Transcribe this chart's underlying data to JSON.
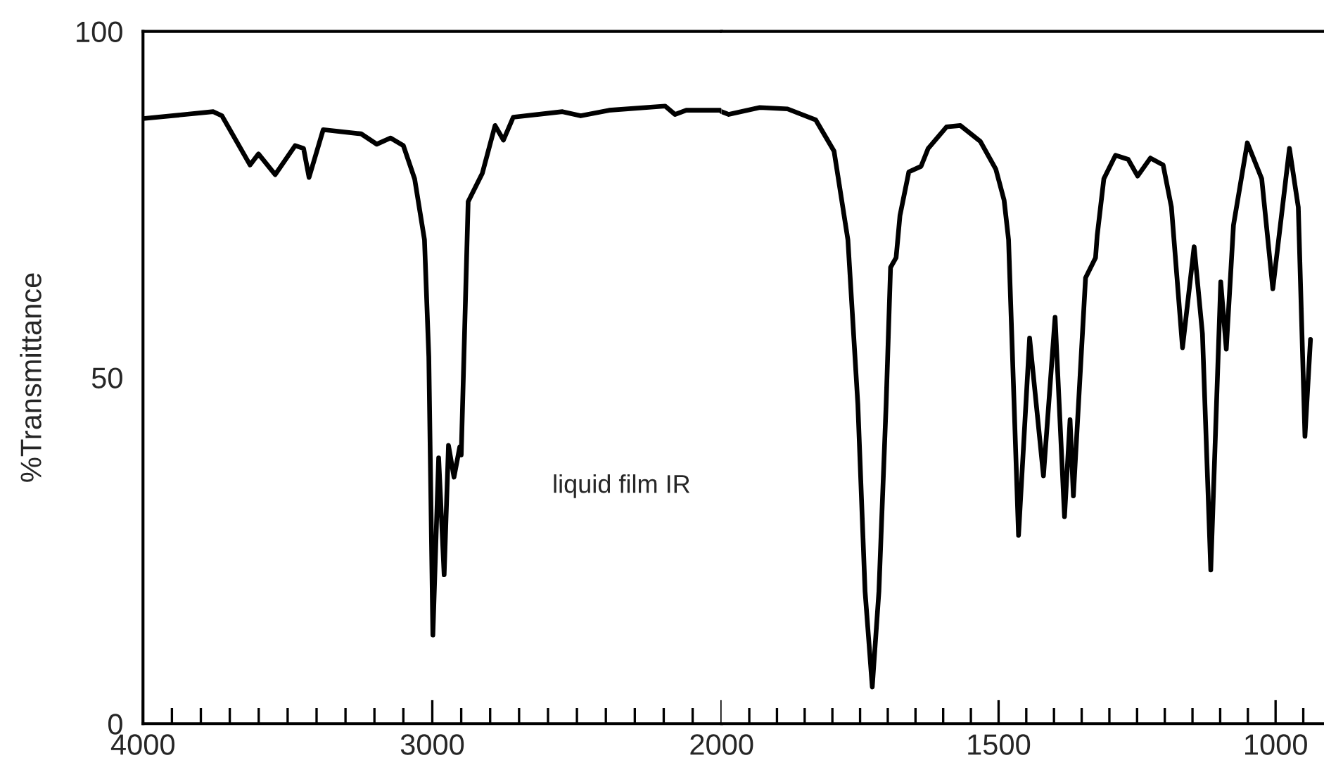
{
  "chart_data": [
    {
      "type": "line",
      "ylabel": "%Transmittance",
      "annotations": [
        "liquid film IR"
      ],
      "xlim": [
        4000,
        2000
      ],
      "ylim": [
        0,
        100
      ],
      "yticks": [
        0,
        50,
        100
      ],
      "xticks": [
        4000,
        {
          "value": 3900,
          "label": null
        },
        {
          "value": 3800,
          "label": null
        },
        {
          "value": 3700,
          "label": null
        },
        {
          "value": 3600,
          "label": null
        },
        {
          "value": 3500,
          "label": null
        },
        {
          "value": 3400,
          "label": null
        },
        {
          "value": 3300,
          "label": null
        },
        {
          "value": 3200,
          "label": null
        },
        {
          "value": 3100,
          "label": null
        },
        3000,
        {
          "value": 2900,
          "label": null
        },
        {
          "value": 2800,
          "label": null
        },
        {
          "value": 2700,
          "label": null
        },
        {
          "value": 2600,
          "label": null
        },
        {
          "value": 2500,
          "label": null
        },
        {
          "value": 2400,
          "label": null
        },
        {
          "value": 2300,
          "label": null
        },
        {
          "value": 2200,
          "label": null
        },
        {
          "value": 2100,
          "label": null
        },
        2000
      ],
      "series": [
        {
          "color": "#000000",
          "x": [
            4000,
            3757,
            3727,
            3630,
            3601,
            3543,
            3474,
            3445,
            3426,
            3377,
            3246,
            3192,
            3144,
            3100,
            3061,
            3027,
            3012,
            2998,
            2978,
            2959,
            2944,
            2925,
            2905,
            2900,
            2876,
            2827,
            2783,
            2754,
            2720,
            2550,
            2487,
            2389,
            2195,
            2161,
            2122,
            2005,
            2000
          ],
          "values": [
            87.4,
            88.4,
            87.8,
            80.7,
            82.3,
            79.3,
            83.5,
            83.1,
            78.9,
            85.8,
            85.2,
            83.7,
            84.6,
            83.5,
            78.7,
            69.9,
            53.0,
            12.8,
            38.4,
            21.5,
            40.2,
            35.6,
            40.0,
            38.8,
            75.4,
            79.5,
            86.4,
            84.3,
            87.6,
            88.4,
            87.8,
            88.6,
            89.2,
            88.0,
            88.6,
            88.6,
            88.4
          ]
        }
      ]
    },
    {
      "type": "line",
      "tick_labels": "x",
      "xlim": [
        2000,
        915
      ],
      "ylim": [
        0,
        100
      ],
      "xticks": [
        {
          "value": 1950,
          "label": null
        },
        {
          "value": 1900,
          "label": null
        },
        {
          "value": 1850,
          "label": null
        },
        {
          "value": 1800,
          "label": null
        },
        {
          "value": 1750,
          "label": null
        },
        {
          "value": 1700,
          "label": null
        },
        {
          "value": 1650,
          "label": null
        },
        {
          "value": 1600,
          "label": null
        },
        {
          "value": 1550,
          "label": null
        },
        1500,
        {
          "value": 1450,
          "label": null
        },
        {
          "value": 1400,
          "label": null
        },
        {
          "value": 1350,
          "label": null
        },
        {
          "value": 1300,
          "label": null
        },
        {
          "value": 1250,
          "label": null
        },
        {
          "value": 1200,
          "label": null
        },
        {
          "value": 1150,
          "label": null
        },
        {
          "value": 1100,
          "label": null
        },
        {
          "value": 1050,
          "label": null
        },
        1000,
        {
          "value": 950,
          "label": null
        }
      ],
      "series": [
        {
          "color": "#000000",
          "x": [
            2000,
            1987,
            1931,
            1881,
            1830,
            1797,
            1772,
            1754,
            1741,
            1728,
            1716,
            1703,
            1695,
            1685,
            1678,
            1662,
            1640,
            1627,
            1594,
            1569,
            1533,
            1505,
            1490,
            1482,
            1464,
            1444,
            1419,
            1398,
            1381,
            1371,
            1365,
            1343,
            1325,
            1322,
            1310,
            1289,
            1266,
            1249,
            1226,
            1203,
            1188,
            1168,
            1147,
            1132,
            1117,
            1099,
            1089,
            1076,
            1051,
            1025,
            1005,
            975,
            959,
            947,
            937
          ],
          "values": [
            88.4,
            88.0,
            89.0,
            88.8,
            87.2,
            82.7,
            69.9,
            46.1,
            19.1,
            5.3,
            19.1,
            46.1,
            65.9,
            67.3,
            73.4,
            79.7,
            80.5,
            83.1,
            86.2,
            86.4,
            84.1,
            80.1,
            75.6,
            69.9,
            27.2,
            55.7,
            35.8,
            58.7,
            29.9,
            43.9,
            32.9,
            64.4,
            67.3,
            70.5,
            78.7,
            82.1,
            81.5,
            79.1,
            81.7,
            80.7,
            74.6,
            54.3,
            68.9,
            56.3,
            22.2,
            63.8,
            54.1,
            72.0,
            83.9,
            78.7,
            62.8,
            83.1,
            74.6,
            41.5,
            55.5
          ]
        }
      ]
    }
  ]
}
